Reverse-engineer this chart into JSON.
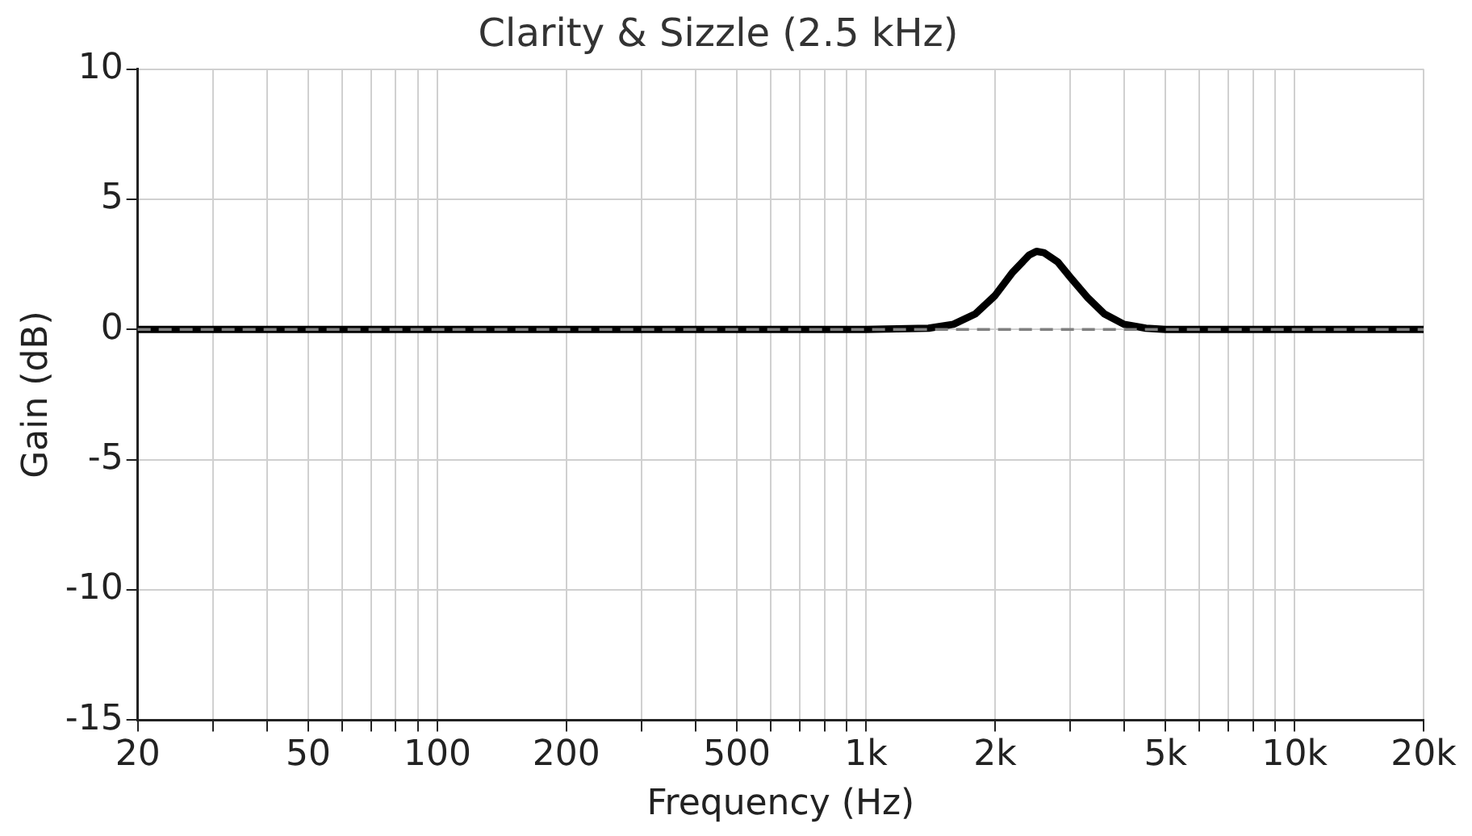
{
  "chart_data": {
    "type": "line",
    "title": "Clarity & Sizzle (2.5 kHz)",
    "xlabel": "Frequency (Hz)",
    "ylabel": "Gain (dB)",
    "log": "x",
    "grid": true,
    "marker": "none",
    "line_style": "solid",
    "xlim": [
      20,
      20000
    ],
    "ylim": [
      -15,
      10
    ],
    "xticks": [
      20,
      {
        "value": 30,
        "label": null
      },
      {
        "value": 40,
        "label": null
      },
      50,
      {
        "value": 60,
        "label": null
      },
      {
        "value": 70,
        "label": null
      },
      {
        "value": 80,
        "label": null
      },
      {
        "value": 90,
        "label": null
      },
      100,
      200,
      {
        "value": 300,
        "label": null
      },
      {
        "value": 400,
        "label": null
      },
      500,
      {
        "value": 600,
        "label": null
      },
      {
        "value": 700,
        "label": null
      },
      {
        "value": 800,
        "label": null
      },
      {
        "value": 900,
        "label": null
      },
      {
        "value": 1000,
        "label": "1k"
      },
      {
        "value": 2000,
        "label": "2k"
      },
      {
        "value": 3000,
        "label": null
      },
      {
        "value": 4000,
        "label": null
      },
      {
        "value": 5000,
        "label": "5k"
      },
      {
        "value": 6000,
        "label": null
      },
      {
        "value": 7000,
        "label": null
      },
      {
        "value": 8000,
        "label": null
      },
      {
        "value": 9000,
        "label": null
      },
      {
        "value": 10000,
        "label": "10k"
      },
      {
        "value": 20000,
        "label": "20k"
      }
    ],
    "yticks": [
      -15,
      -10,
      -5,
      0,
      5,
      10
    ],
    "ref_lines": [
      {
        "axis": "y",
        "value": 0,
        "color": "#808080",
        "line_style": "dashed"
      }
    ],
    "series": [
      {
        "color": "#000000",
        "x": [
          20,
          1000,
          1400,
          1600,
          1800,
          2000,
          2200,
          2400,
          2500,
          2600,
          2800,
          3000,
          3300,
          3600,
          4000,
          4500,
          5000,
          20000
        ],
        "values": [
          0,
          0,
          0.05,
          0.2,
          0.6,
          1.3,
          2.2,
          2.85,
          3,
          2.95,
          2.6,
          2,
          1.2,
          0.6,
          0.2,
          0.05,
          0,
          0
        ]
      }
    ]
  }
}
